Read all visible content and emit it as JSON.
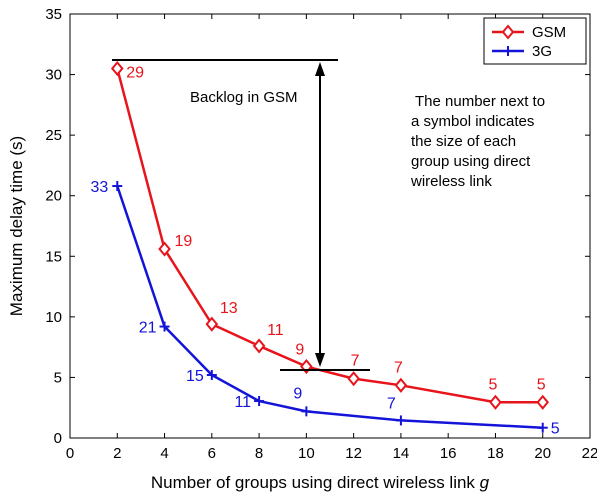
{
  "chart_data": {
    "type": "line",
    "xlabel": "Number of groups using direct wireless link",
    "xlabel_symbol": "g",
    "ylabel": "Maximum delay time (s)",
    "xlim": [
      0,
      22
    ],
    "ylim": [
      0,
      35
    ],
    "x_ticks": [
      "0",
      "2",
      "4",
      "6",
      "8",
      "10",
      "12",
      "14",
      "16",
      "18",
      "20",
      "22"
    ],
    "y_ticks": [
      "0",
      "5",
      "10",
      "15",
      "20",
      "25",
      "30",
      "35"
    ],
    "grid": false,
    "legend_placement": "top-right",
    "series": [
      {
        "name": "GSM",
        "color": "#e8141c",
        "marker": "diamond",
        "x": [
          2,
          4,
          6,
          8,
          10,
          12,
          14,
          18,
          20
        ],
        "y": [
          30.5,
          15.6,
          9.4,
          7.6,
          5.9,
          4.9,
          4.35,
          2.95,
          2.95
        ],
        "point_labels": [
          "29",
          "19",
          "13",
          "11",
          "9",
          "7",
          "7",
          "5",
          "5"
        ]
      },
      {
        "name": "3G",
        "color": "#1414d8",
        "marker": "plus",
        "x": [
          2,
          4,
          6,
          8,
          10,
          14,
          20
        ],
        "y": [
          20.8,
          9.2,
          5.2,
          3.05,
          2.2,
          1.45,
          0.85
        ],
        "point_labels": [
          "33",
          "21",
          "15",
          "11",
          "9",
          "7",
          "5"
        ]
      }
    ],
    "annotations": {
      "backlog_label": "Backlog in GSM",
      "note_lines": [
        "The number next to",
        "a symbol indicates",
        "the size of each",
        "group using direct",
        "wireless link"
      ]
    }
  }
}
